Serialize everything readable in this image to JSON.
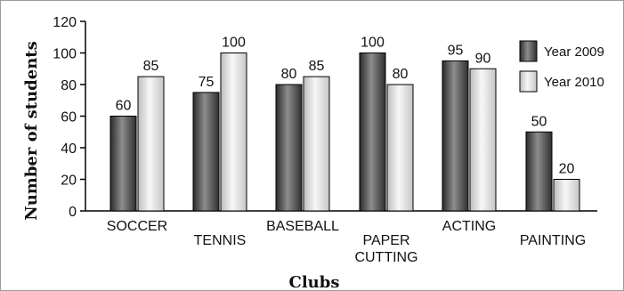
{
  "chart_data": {
    "type": "bar",
    "title": "",
    "xlabel": "Clubs",
    "ylabel": "Number of students",
    "ylim": [
      0,
      120
    ],
    "yticks": [
      0,
      20,
      40,
      60,
      80,
      100,
      120
    ],
    "grid": false,
    "legend_position": "top-right",
    "categories": [
      [
        "SOCCER"
      ],
      [
        "TENNIS"
      ],
      [
        "BASEBALL"
      ],
      [
        "PAPER",
        "CUTTING"
      ],
      [
        "ACTING"
      ],
      [
        "PAINTING"
      ]
    ],
    "series": [
      {
        "name": "Year 2009",
        "values": [
          60,
          75,
          80,
          100,
          95,
          50
        ],
        "color": "#555555"
      },
      {
        "name": "Year 2010",
        "values": [
          85,
          100,
          85,
          80,
          90,
          20
        ],
        "color": "#e2e2e2"
      }
    ]
  }
}
